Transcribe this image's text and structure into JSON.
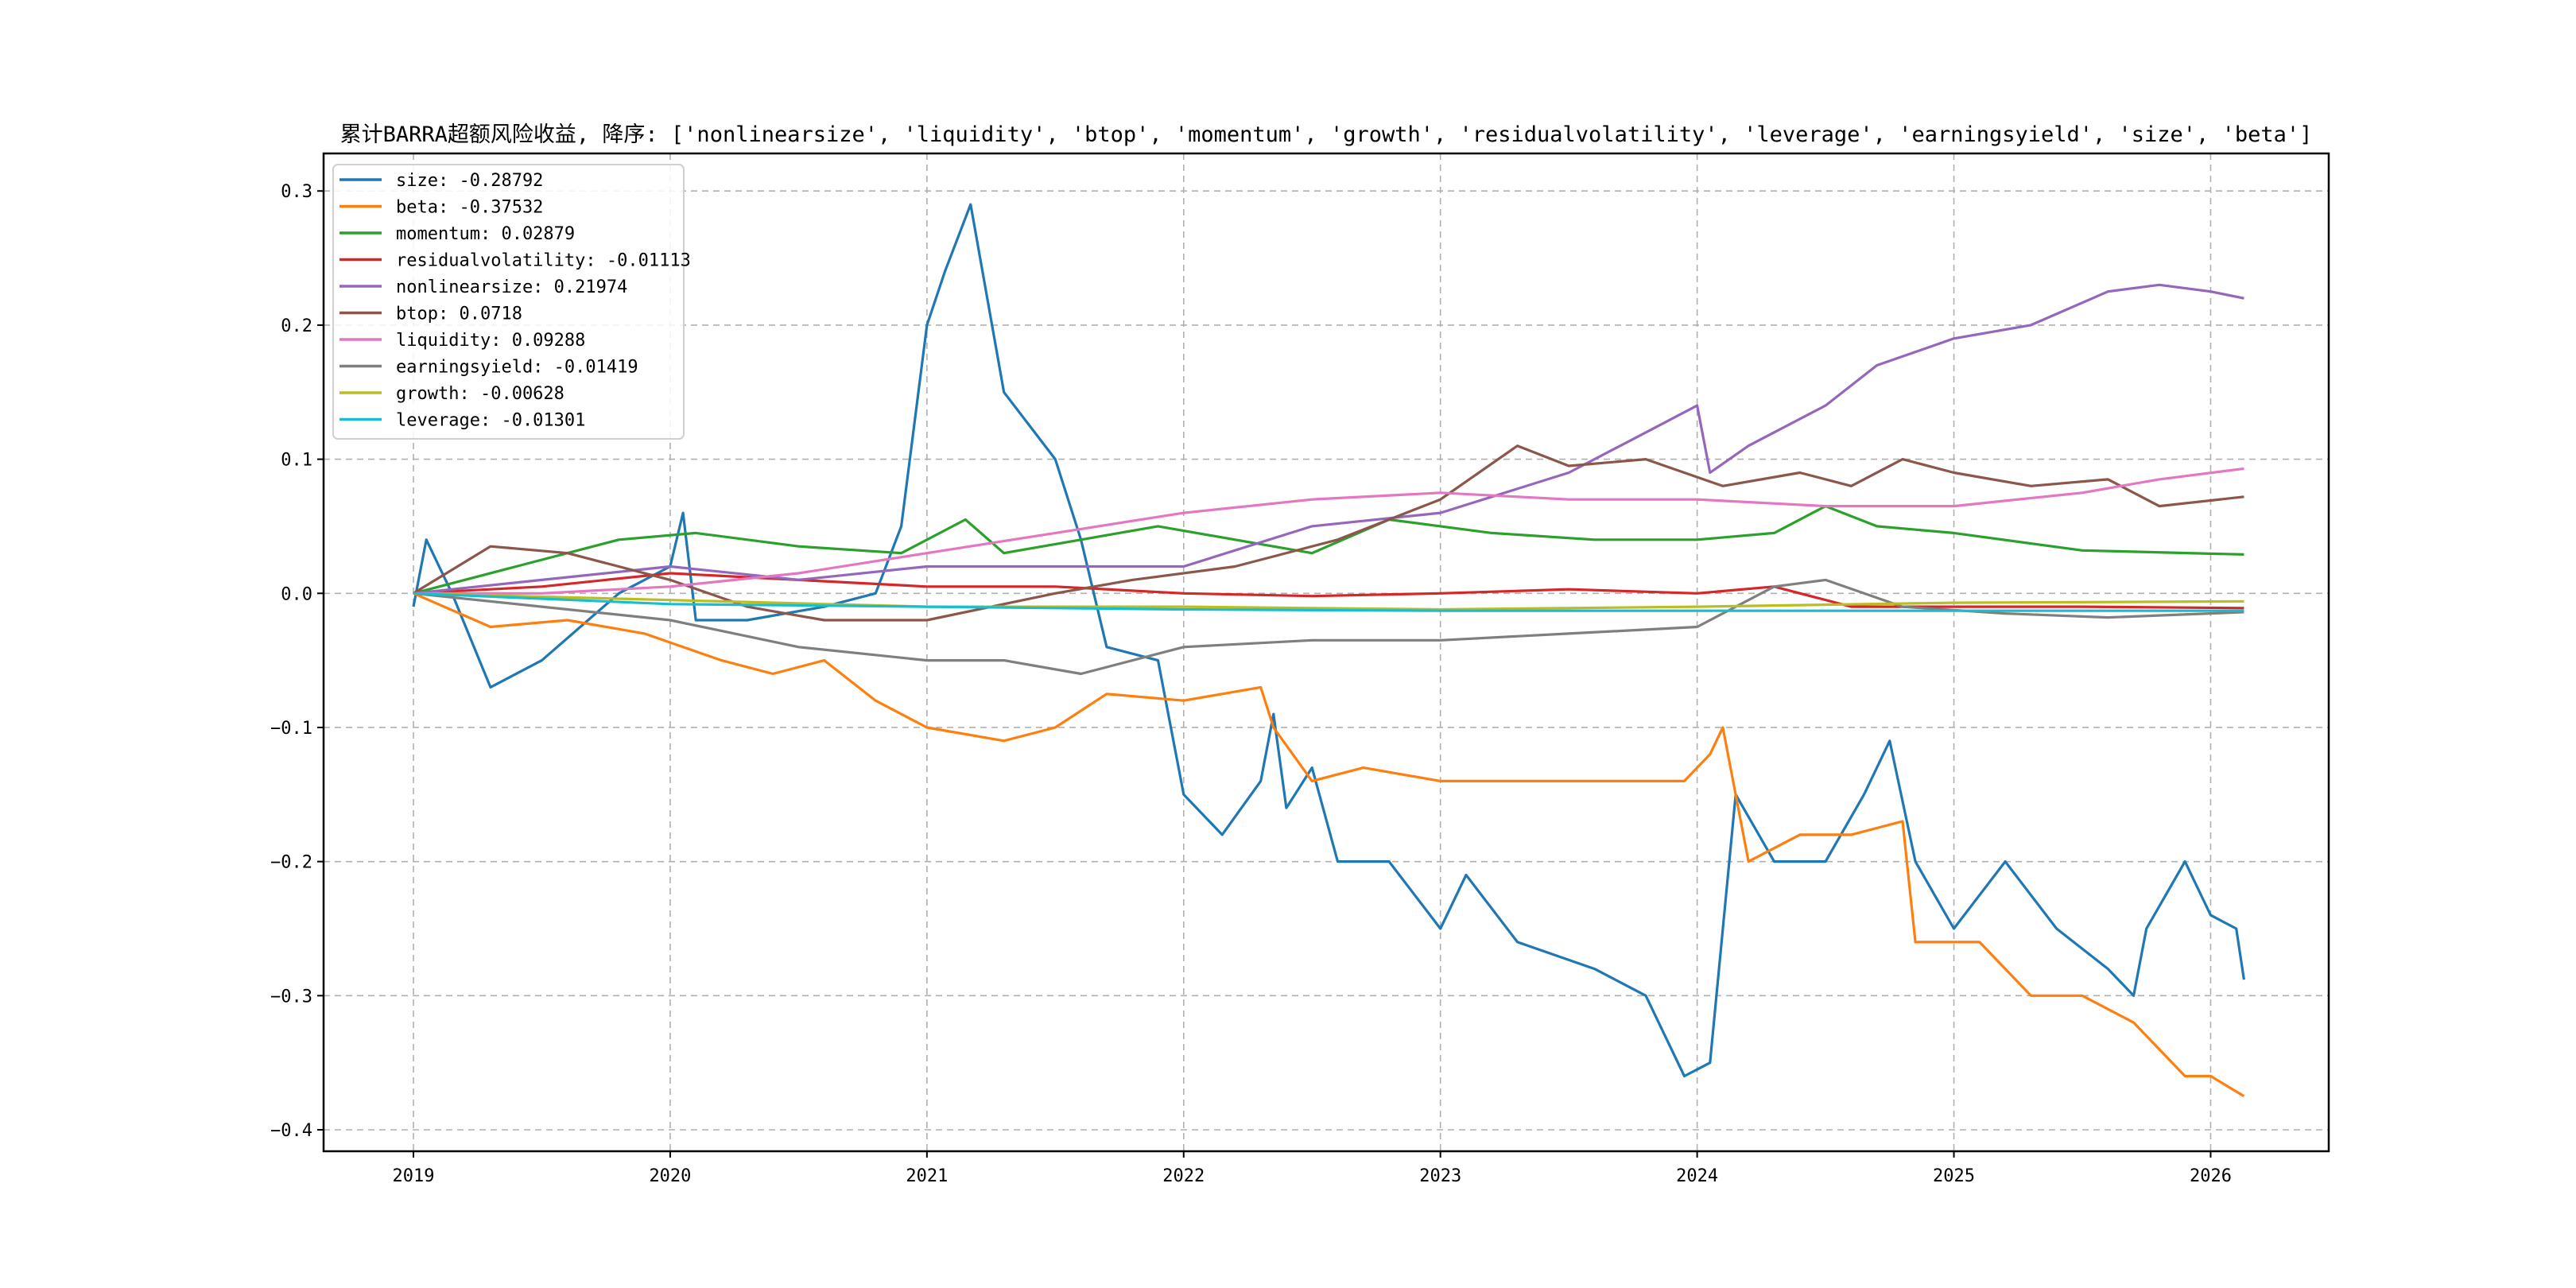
{
  "chart_data": {
    "type": "line",
    "title": "累计BARRA超额风险收益, 降序: ['nonlinearsize', 'liquidity', 'btop', 'momentum', 'growth', 'residualvolatility', 'leverage', 'earningsyield', 'size', 'beta']",
    "xlabel": "",
    "ylabel": "",
    "xlim": [
      2018.65,
      2026.46
    ],
    "ylim": [
      -0.416,
      0.328
    ],
    "xticks": [
      2019,
      2020,
      2021,
      2022,
      2023,
      2024,
      2025,
      2026
    ],
    "xtick_labels": [
      "2019",
      "2020",
      "2021",
      "2022",
      "2023",
      "2024",
      "2025",
      "2026"
    ],
    "yticks": [
      0.3,
      0.2,
      0.1,
      0.0,
      -0.1,
      -0.2,
      -0.3,
      -0.4
    ],
    "ytick_labels": [
      "0.3",
      "0.2",
      "0.1",
      "0.0",
      "−0.1",
      "−0.2",
      "−0.3",
      "−0.4"
    ],
    "grid": true,
    "legend_position": "top-left",
    "series": [
      {
        "name": "size",
        "legend": "size: -0.28792",
        "color": "#1f77b4",
        "x": [
          2019.0,
          2019.05,
          2019.15,
          2019.3,
          2019.5,
          2019.8,
          2020.0,
          2020.05,
          2020.1,
          2020.3,
          2020.6,
          2020.8,
          2020.9,
          2021.0,
          2021.07,
          2021.17,
          2021.3,
          2021.5,
          2021.6,
          2021.7,
          2021.9,
          2022.0,
          2022.15,
          2022.3,
          2022.35,
          2022.4,
          2022.5,
          2022.6,
          2022.8,
          2023.0,
          2023.1,
          2023.3,
          2023.6,
          2023.8,
          2023.95,
          2024.05,
          2024.15,
          2024.3,
          2024.5,
          2024.65,
          2024.75,
          2024.85,
          2025.0,
          2025.2,
          2025.4,
          2025.6,
          2025.7,
          2025.75,
          2025.9,
          2026.0,
          2026.1,
          2026.13
        ],
        "y": [
          -0.01,
          0.04,
          0.0,
          -0.07,
          -0.05,
          0.0,
          0.02,
          0.06,
          -0.02,
          -0.02,
          -0.01,
          0.0,
          0.05,
          0.2,
          0.24,
          0.29,
          0.15,
          0.1,
          0.04,
          -0.04,
          -0.05,
          -0.15,
          -0.18,
          -0.14,
          -0.09,
          -0.16,
          -0.13,
          -0.2,
          -0.2,
          -0.25,
          -0.21,
          -0.26,
          -0.28,
          -0.3,
          -0.36,
          -0.35,
          -0.15,
          -0.2,
          -0.2,
          -0.15,
          -0.11,
          -0.2,
          -0.25,
          -0.2,
          -0.25,
          -0.28,
          -0.3,
          -0.25,
          -0.2,
          -0.24,
          -0.25,
          -0.288
        ]
      },
      {
        "name": "beta",
        "legend": "beta: -0.37532",
        "color": "#ff7f0e",
        "x": [
          2019.0,
          2019.3,
          2019.6,
          2019.9,
          2020.2,
          2020.4,
          2020.6,
          2020.8,
          2021.0,
          2021.3,
          2021.5,
          2021.7,
          2022.0,
          2022.3,
          2022.35,
          2022.5,
          2022.7,
          2023.0,
          2023.5,
          2023.95,
          2024.05,
          2024.1,
          2024.2,
          2024.4,
          2024.6,
          2024.8,
          2024.85,
          2025.1,
          2025.3,
          2025.5,
          2025.7,
          2025.9,
          2026.0,
          2026.13
        ],
        "y": [
          0.0,
          -0.025,
          -0.02,
          -0.03,
          -0.05,
          -0.06,
          -0.05,
          -0.08,
          -0.1,
          -0.11,
          -0.1,
          -0.075,
          -0.08,
          -0.07,
          -0.1,
          -0.14,
          -0.13,
          -0.14,
          -0.14,
          -0.14,
          -0.12,
          -0.1,
          -0.2,
          -0.18,
          -0.18,
          -0.17,
          -0.26,
          -0.26,
          -0.3,
          -0.3,
          -0.32,
          -0.36,
          -0.36,
          -0.375
        ]
      },
      {
        "name": "momentum",
        "legend": "momentum: 0.02879",
        "color": "#2ca02c",
        "x": [
          2019.0,
          2019.4,
          2019.8,
          2020.1,
          2020.5,
          2020.9,
          2021.15,
          2021.3,
          2021.6,
          2021.9,
          2022.2,
          2022.5,
          2022.8,
          2023.2,
          2023.6,
          2024.0,
          2024.3,
          2024.5,
          2024.7,
          2025.0,
          2025.5,
          2026.13
        ],
        "y": [
          0.0,
          0.02,
          0.04,
          0.045,
          0.035,
          0.03,
          0.055,
          0.03,
          0.04,
          0.05,
          0.04,
          0.03,
          0.055,
          0.045,
          0.04,
          0.04,
          0.045,
          0.065,
          0.05,
          0.045,
          0.032,
          0.029
        ]
      },
      {
        "name": "residualvolatility",
        "legend": "residualvolatility: -0.01113",
        "color": "#d62728",
        "x": [
          2019.0,
          2019.5,
          2020.0,
          2020.5,
          2021.0,
          2021.5,
          2022.0,
          2022.5,
          2023.0,
          2023.5,
          2024.0,
          2024.3,
          2024.6,
          2025.0,
          2025.5,
          2026.13
        ],
        "y": [
          0.0,
          0.005,
          0.015,
          0.01,
          0.005,
          0.005,
          0.0,
          -0.002,
          0.0,
          0.003,
          0.0,
          0.005,
          -0.01,
          -0.01,
          -0.01,
          -0.011
        ]
      },
      {
        "name": "nonlinearsize",
        "legend": "nonlinearsize: 0.21974",
        "color": "#9467bd",
        "x": [
          2019.0,
          2019.5,
          2020.0,
          2020.5,
          2021.0,
          2021.5,
          2022.0,
          2022.5,
          2023.0,
          2023.5,
          2023.8,
          2024.0,
          2024.05,
          2024.2,
          2024.5,
          2024.7,
          2025.0,
          2025.3,
          2025.6,
          2025.8,
          2026.0,
          2026.13
        ],
        "y": [
          0.0,
          0.01,
          0.02,
          0.01,
          0.02,
          0.02,
          0.02,
          0.05,
          0.06,
          0.09,
          0.12,
          0.14,
          0.09,
          0.11,
          0.14,
          0.17,
          0.19,
          0.2,
          0.225,
          0.23,
          0.225,
          0.22
        ]
      },
      {
        "name": "btop",
        "legend": "btop: 0.0718",
        "color": "#8c564b",
        "x": [
          2019.0,
          2019.3,
          2019.6,
          2020.0,
          2020.3,
          2020.6,
          2021.0,
          2021.5,
          2021.8,
          2022.2,
          2022.6,
          2023.0,
          2023.3,
          2023.5,
          2023.8,
          2024.1,
          2024.4,
          2024.6,
          2024.8,
          2025.0,
          2025.3,
          2025.6,
          2025.8,
          2026.13
        ],
        "y": [
          0.0,
          0.035,
          0.03,
          0.01,
          -0.01,
          -0.02,
          -0.02,
          0.0,
          0.01,
          0.02,
          0.04,
          0.07,
          0.11,
          0.095,
          0.1,
          0.08,
          0.09,
          0.08,
          0.1,
          0.09,
          0.08,
          0.085,
          0.065,
          0.072
        ]
      },
      {
        "name": "liquidity",
        "legend": "liquidity: 0.09288",
        "color": "#e377c2",
        "x": [
          2019.0,
          2019.5,
          2020.0,
          2020.5,
          2021.0,
          2021.5,
          2022.0,
          2022.5,
          2023.0,
          2023.5,
          2024.0,
          2024.5,
          2025.0,
          2025.5,
          2025.8,
          2026.13
        ],
        "y": [
          0.0,
          0.0,
          0.005,
          0.015,
          0.03,
          0.045,
          0.06,
          0.07,
          0.075,
          0.07,
          0.07,
          0.065,
          0.065,
          0.075,
          0.085,
          0.093
        ]
      },
      {
        "name": "earningsyield",
        "legend": "earningsyield: -0.01419",
        "color": "#7f7f7f",
        "x": [
          2019.0,
          2019.5,
          2020.0,
          2020.5,
          2021.0,
          2021.3,
          2021.6,
          2022.0,
          2022.5,
          2023.0,
          2023.5,
          2024.0,
          2024.3,
          2024.5,
          2024.8,
          2025.2,
          2025.6,
          2026.13
        ],
        "y": [
          0.0,
          -0.01,
          -0.02,
          -0.04,
          -0.05,
          -0.05,
          -0.06,
          -0.04,
          -0.035,
          -0.035,
          -0.03,
          -0.025,
          0.005,
          0.01,
          -0.01,
          -0.015,
          -0.018,
          -0.014
        ]
      },
      {
        "name": "growth",
        "legend": "growth: -0.00628",
        "color": "#bcbd22",
        "x": [
          2019.0,
          2020.0,
          2021.0,
          2022.0,
          2023.0,
          2024.0,
          2025.0,
          2026.13
        ],
        "y": [
          0.0,
          -0.005,
          -0.01,
          -0.01,
          -0.012,
          -0.01,
          -0.007,
          -0.006
        ]
      },
      {
        "name": "leverage",
        "legend": "leverage: -0.01301",
        "color": "#17becf",
        "x": [
          2019.0,
          2020.0,
          2021.0,
          2022.0,
          2023.0,
          2024.0,
          2025.0,
          2026.13
        ],
        "y": [
          0.0,
          -0.008,
          -0.01,
          -0.012,
          -0.013,
          -0.013,
          -0.013,
          -0.013
        ]
      }
    ]
  }
}
